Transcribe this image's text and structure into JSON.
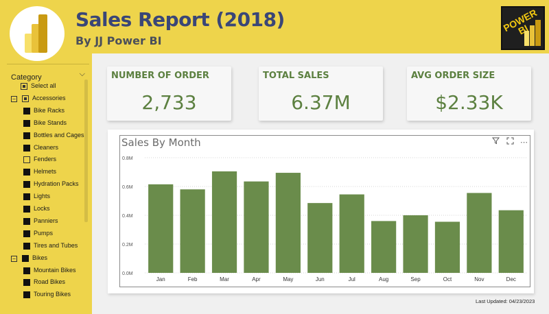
{
  "header": {
    "title": "Sales Report (2018)",
    "subtitle": "By JJ Power BI",
    "badge_text": "POWER BI",
    "brand_color": "#eed44b",
    "title_color": "#3a4677"
  },
  "slicer": {
    "title": "Category",
    "items": [
      {
        "label": "Select all",
        "state": "partial",
        "level": 0,
        "expander": ""
      },
      {
        "label": "Accessories",
        "state": "partial",
        "level": 0,
        "expander": "−"
      },
      {
        "label": "Bike Racks",
        "state": "filled",
        "level": 1
      },
      {
        "label": "Bike Stands",
        "state": "filled",
        "level": 1
      },
      {
        "label": "Bottles and Cages",
        "state": "filled",
        "level": 1
      },
      {
        "label": "Cleaners",
        "state": "filled",
        "level": 1
      },
      {
        "label": "Fenders",
        "state": "empty",
        "level": 1
      },
      {
        "label": "Helmets",
        "state": "filled",
        "level": 1
      },
      {
        "label": "Hydration Packs",
        "state": "filled",
        "level": 1
      },
      {
        "label": "Lights",
        "state": "filled",
        "level": 1
      },
      {
        "label": "Locks",
        "state": "filled",
        "level": 1
      },
      {
        "label": "Panniers",
        "state": "filled",
        "level": 1
      },
      {
        "label": "Pumps",
        "state": "filled",
        "level": 1
      },
      {
        "label": "Tires and Tubes",
        "state": "filled",
        "level": 1
      },
      {
        "label": "Bikes",
        "state": "filled",
        "level": 0,
        "expander": "−"
      },
      {
        "label": "Mountain Bikes",
        "state": "filled",
        "level": 1
      },
      {
        "label": "Road Bikes",
        "state": "filled",
        "level": 1
      },
      {
        "label": "Touring Bikes",
        "state": "filled",
        "level": 1
      }
    ]
  },
  "kpis": [
    {
      "label": "NUMBER OF ORDER",
      "value": "2,733"
    },
    {
      "label": "TOTAL SALES",
      "value": "6.37M"
    },
    {
      "label": "AVG ORDER SIZE",
      "value": "$2.33K"
    }
  ],
  "chart_data": {
    "type": "bar",
    "title": "Sales By Month",
    "categories": [
      "Jan",
      "Feb",
      "Mar",
      "Apr",
      "May",
      "Jun",
      "Jul",
      "Aug",
      "Sep",
      "Oct",
      "Nov",
      "Dec"
    ],
    "values": [
      0.615,
      0.58,
      0.705,
      0.635,
      0.695,
      0.485,
      0.545,
      0.36,
      0.4,
      0.355,
      0.555,
      0.435
    ],
    "ylim": [
      0,
      0.8
    ],
    "yticks": [
      0,
      0.2,
      0.4,
      0.6,
      0.8
    ],
    "ytick_labels": [
      "0.0M",
      "0.2M",
      "0.4M",
      "0.6M",
      "0.8M"
    ],
    "bar_color": "#6a8c4b",
    "grid": true
  },
  "footer": {
    "last_updated": "Last Updated: 04/23/2023"
  }
}
